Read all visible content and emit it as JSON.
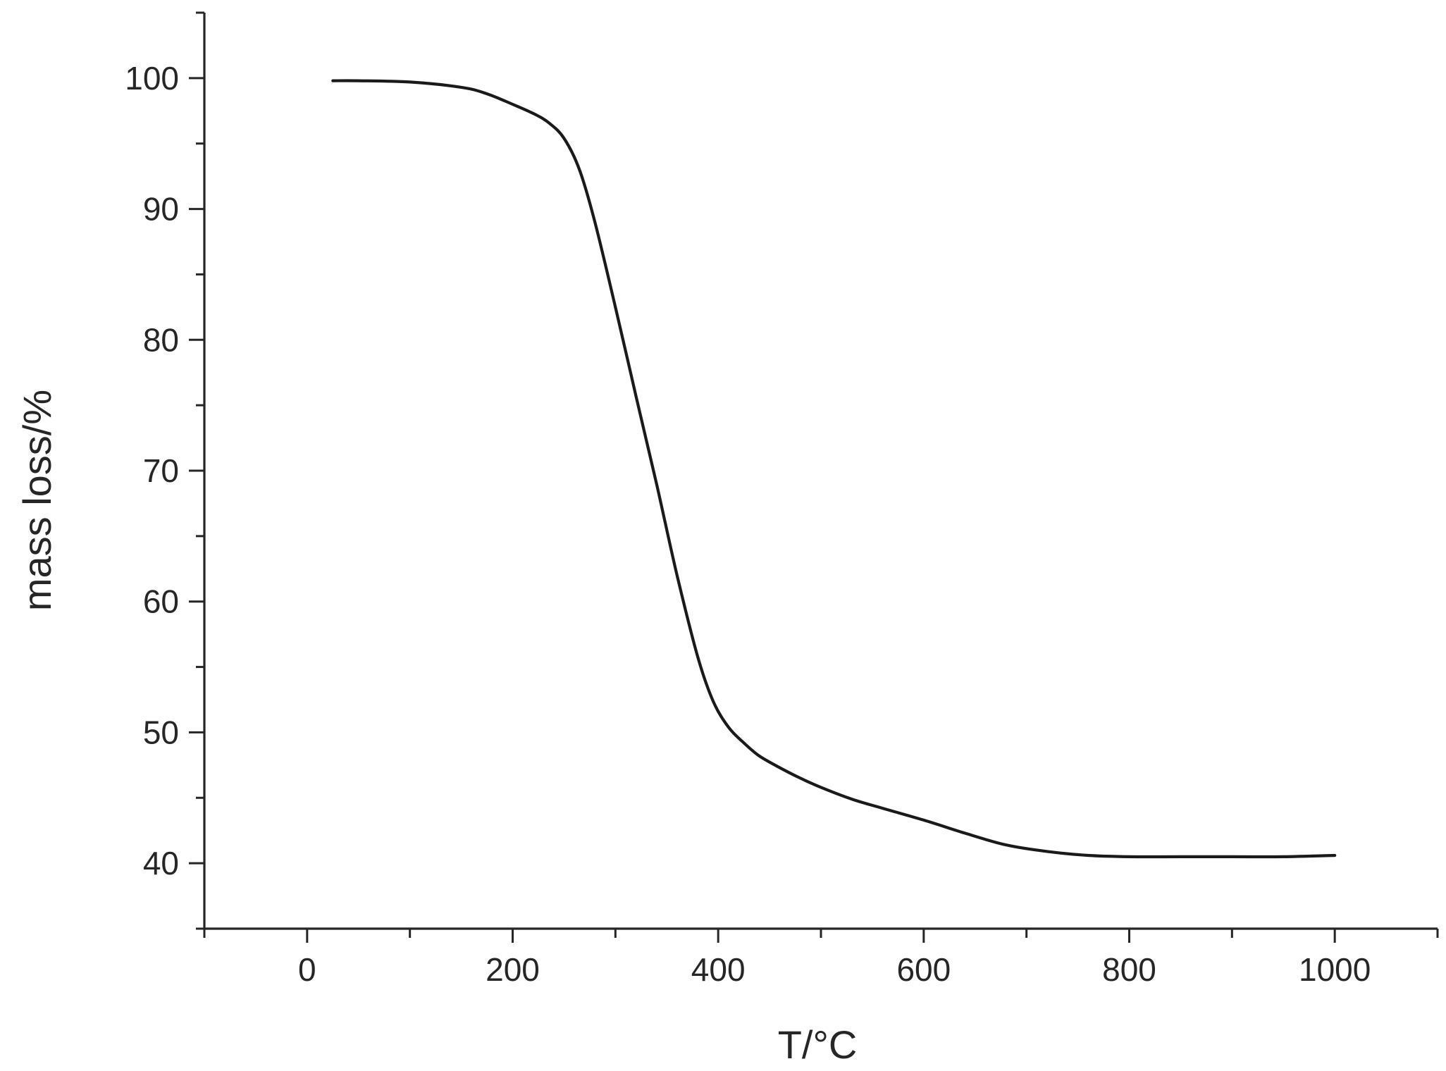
{
  "chart_data": {
    "type": "line",
    "title": "",
    "xlabel": "T/°C",
    "ylabel": "mass loss/%",
    "xlim": [
      -100,
      1100
    ],
    "ylim": [
      35,
      105
    ],
    "x_ticks": [
      0,
      200,
      400,
      600,
      800,
      1000
    ],
    "y_ticks": [
      40,
      50,
      60,
      70,
      80,
      90,
      100
    ],
    "x_minor_step": 100,
    "y_minor_step": 5,
    "grid": false,
    "legend": "none",
    "line_color": "#1a1a1a",
    "series": [
      {
        "x": [
          25,
          50,
          100,
          150,
          175,
          200,
          220,
          235,
          250,
          265,
          280,
          300,
          320,
          340,
          360,
          380,
          395,
          410,
          425,
          440,
          460,
          480,
          500,
          530,
          560,
          600,
          640,
          680,
          720,
          760,
          800,
          850,
          900,
          950,
          1000
        ],
        "y": [
          99.8,
          99.8,
          99.7,
          99.3,
          98.8,
          98.0,
          97.3,
          96.6,
          95.4,
          93.0,
          89.0,
          82.5,
          75.7,
          69.0,
          62.0,
          55.8,
          52.4,
          50.4,
          49.2,
          48.2,
          47.3,
          46.5,
          45.8,
          44.9,
          44.2,
          43.3,
          42.3,
          41.4,
          40.9,
          40.6,
          40.5,
          40.5,
          40.5,
          40.5,
          40.6
        ]
      }
    ]
  }
}
